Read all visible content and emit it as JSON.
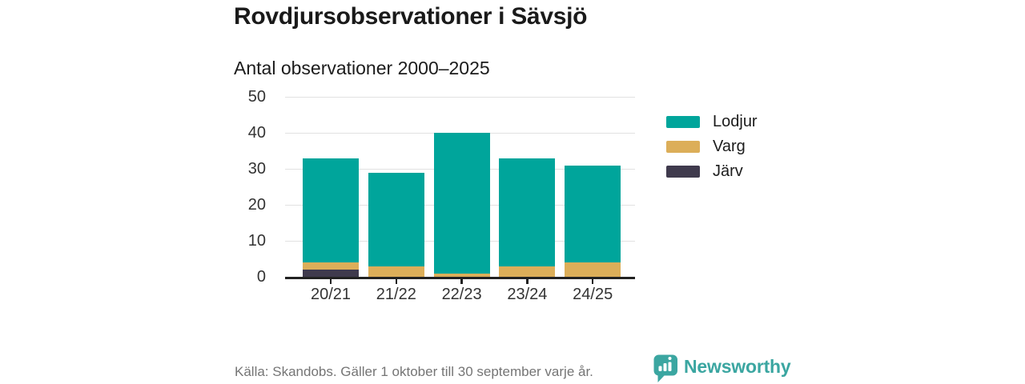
{
  "header": {
    "title": "Rovdjursobservationer i Sävsjö",
    "subtitle": "Antal observationer 2000–2025"
  },
  "chart_data": {
    "type": "bar",
    "stacked": true,
    "title": "Antal observationer 2000–2025",
    "categories": [
      "20/21",
      "21/22",
      "22/23",
      "23/24",
      "24/25"
    ],
    "series": [
      {
        "name": "Lodjur",
        "color": "#00a59b",
        "values": [
          29,
          26,
          39,
          30,
          27
        ]
      },
      {
        "name": "Varg",
        "color": "#dcae59",
        "values": [
          2,
          3,
          1,
          3,
          4
        ]
      },
      {
        "name": "Järv",
        "color": "#3f3a4d",
        "values": [
          2,
          0,
          0,
          0,
          0
        ]
      }
    ],
    "stack_order_bottom_to_top": [
      "Järv",
      "Varg",
      "Lodjur"
    ],
    "stack_totals": [
      33,
      29,
      40,
      33,
      31
    ],
    "xlabel": "",
    "ylabel": "",
    "ylim": [
      0,
      50
    ],
    "yticks": [
      0,
      10,
      20,
      30,
      40,
      50
    ],
    "grid": true,
    "legend_position": "right",
    "colors": {
      "axis": "#222222",
      "gridline": "#e2e2e2",
      "tick_label": "#333333"
    }
  },
  "footer": {
    "source": "Källa: Skandobs. Gäller 1 oktober till 30 september varje år.",
    "brand": "Newsworthy",
    "brand_color": "#3ba6a1",
    "logo_icon": "bar-chart-speech-bubble-icon"
  }
}
